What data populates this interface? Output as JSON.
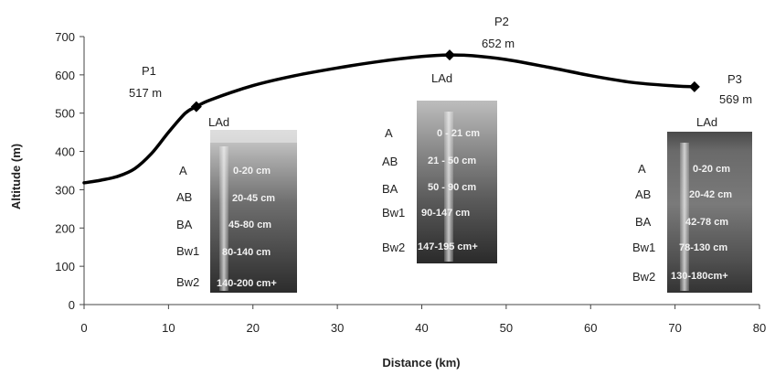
{
  "chart_data": {
    "type": "line",
    "title": "",
    "xlabel": "Distance  (km)",
    "ylabel": "Altitude (m)",
    "xlim": [
      0,
      80
    ],
    "ylim": [
      0,
      700
    ],
    "xticks": [
      "0",
      "10",
      "20",
      "30",
      "40",
      "50",
      "60",
      "70",
      "80"
    ],
    "yticks": [
      "0",
      "100",
      "200",
      "300",
      "400",
      "500",
      "600",
      "700"
    ],
    "grid": false,
    "legend": "none",
    "line_color": "#000000",
    "series": [
      {
        "x": [
          0,
          2,
          4,
          6,
          8,
          10,
          12,
          13.3,
          15,
          20,
          25,
          30,
          35,
          40,
          43.3,
          46,
          50,
          55,
          60,
          65,
          70,
          72.3
        ],
        "y": [
          318,
          325,
          335,
          355,
          395,
          450,
          500,
          517,
          535,
          572,
          598,
          618,
          635,
          648,
          652,
          650,
          640,
          620,
          598,
          580,
          571,
          569
        ]
      }
    ],
    "points": [
      {
        "name": "P1",
        "x": 13.3,
        "y": 517,
        "label": "P1",
        "altitude_label": "517 m",
        "soil": "LAd"
      },
      {
        "name": "P2",
        "x": 43.3,
        "y": 652,
        "label": "P2",
        "altitude_label": "652 m",
        "soil": "LAd"
      },
      {
        "name": "P3",
        "x": 72.3,
        "y": 569,
        "label": "P3",
        "altitude_label": "569 m",
        "soil": "LAd"
      }
    ],
    "profiles": [
      {
        "horizons": [
          {
            "name": "A",
            "depth": "0-20 cm"
          },
          {
            "name": "AB",
            "depth": "20-45 cm"
          },
          {
            "name": "BA",
            "depth": "45-80 cm"
          },
          {
            "name": "Bw1",
            "depth": "80-140 cm"
          },
          {
            "name": "Bw2",
            "depth": "140-200 cm+"
          }
        ]
      },
      {
        "horizons": [
          {
            "name": "A",
            "depth": "0 - 21 cm"
          },
          {
            "name": "AB",
            "depth": "21 - 50 cm"
          },
          {
            "name": "BA",
            "depth": "50 - 90 cm"
          },
          {
            "name": "Bw1",
            "depth": "90-147 cm"
          },
          {
            "name": "Bw2",
            "depth": "147-195 cm+"
          }
        ]
      },
      {
        "horizons": [
          {
            "name": "A",
            "depth": "0-20 cm"
          },
          {
            "name": "AB",
            "depth": "20-42 cm"
          },
          {
            "name": "BA",
            "depth": "42-78 cm"
          },
          {
            "name": "Bw1",
            "depth": "78-130 cm"
          },
          {
            "name": "Bw2",
            "depth": "130-180cm+"
          }
        ]
      }
    ]
  }
}
